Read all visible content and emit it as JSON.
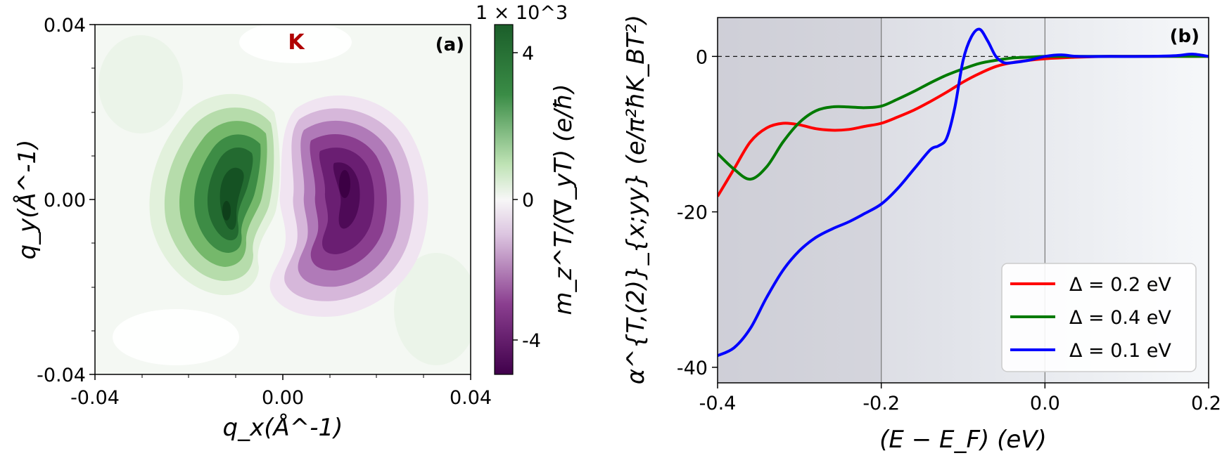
{
  "chart_data": [
    {
      "panel": "(a)",
      "type": "heatmap",
      "title": "",
      "annotation": "K",
      "xlabel": "q_x(Å^-1)",
      "ylabel": "q_y(Å^-1)",
      "xlim": [
        -0.04,
        0.04
      ],
      "ylim": [
        -0.04,
        0.04
      ],
      "xticks": [
        "-0.04",
        "0.00",
        "0.04"
      ],
      "yticks": [
        "0.04",
        "0.00",
        "-0.04"
      ],
      "colorbar": {
        "label": "m_z^T/(∇_yT)  (e/ħ)",
        "multiplier": "1 × 10^3",
        "range": [
          -5,
          5
        ],
        "ticks": [
          "4",
          "0",
          "-4"
        ],
        "cmap": "PRGn",
        "colors": {
          "max": "#1b5e2a",
          "mid": "#f7f7f7",
          "min": "#40004b"
        }
      },
      "lobes": [
        {
          "name": "positive",
          "center_x": -0.015,
          "center_y": 0.0,
          "peak": 5.0
        },
        {
          "name": "negative",
          "center_x": 0.012,
          "center_y": 0.002,
          "peak": -5.0
        }
      ]
    },
    {
      "panel": "(b)",
      "type": "line",
      "title": "",
      "xlabel": "(E − E_F)  (eV)",
      "ylabel": "α^{T,(2)}_{x;yy}  (e/π²ħK_BT²)",
      "xlim": [
        -0.4,
        0.2
      ],
      "ylim": [
        -42,
        5
      ],
      "xticks": [
        "-0.4",
        "-0.2",
        "0.0",
        "0.2"
      ],
      "yticks": [
        "0",
        "-20",
        "-40"
      ],
      "vlines": [
        -0.2,
        0.0
      ],
      "hline": 0,
      "legend_position": "lower-right",
      "series": [
        {
          "name": "Δ = 0.2 eV",
          "color": "#ff0000",
          "x": [
            -0.4,
            -0.38,
            -0.36,
            -0.34,
            -0.32,
            -0.3,
            -0.28,
            -0.26,
            -0.24,
            -0.22,
            -0.2,
            -0.18,
            -0.16,
            -0.14,
            -0.12,
            -0.1,
            -0.08,
            -0.06,
            -0.04,
            -0.02,
            0.0,
            0.04,
            0.08,
            0.12,
            0.16,
            0.2
          ],
          "y": [
            -18.0,
            -14.5,
            -11.0,
            -9.2,
            -8.6,
            -8.8,
            -9.3,
            -9.5,
            -9.4,
            -9.0,
            -8.6,
            -7.8,
            -6.9,
            -5.8,
            -4.6,
            -3.3,
            -2.2,
            -1.3,
            -0.8,
            -0.5,
            -0.3,
            -0.1,
            0.0,
            0.0,
            0.0,
            0.0
          ]
        },
        {
          "name": "Δ = 0.4 eV",
          "color": "#007a00",
          "x": [
            -0.4,
            -0.38,
            -0.36,
            -0.34,
            -0.32,
            -0.3,
            -0.28,
            -0.26,
            -0.24,
            -0.22,
            -0.2,
            -0.18,
            -0.16,
            -0.14,
            -0.12,
            -0.1,
            -0.08,
            -0.06,
            -0.04,
            -0.02,
            0.0,
            0.04,
            0.08,
            0.12,
            0.16,
            0.2
          ],
          "y": [
            -12.5,
            -14.5,
            -15.8,
            -14.2,
            -11.0,
            -8.5,
            -7.0,
            -6.5,
            -6.5,
            -6.6,
            -6.4,
            -5.5,
            -4.5,
            -3.4,
            -2.4,
            -1.6,
            -0.9,
            -0.5,
            -0.2,
            -0.1,
            0.0,
            0.0,
            0.0,
            0.0,
            0.0,
            0.0
          ]
        },
        {
          "name": "Δ = 0.1 eV",
          "color": "#0000ff",
          "x": [
            -0.4,
            -0.38,
            -0.36,
            -0.34,
            -0.32,
            -0.3,
            -0.28,
            -0.26,
            -0.24,
            -0.22,
            -0.2,
            -0.18,
            -0.16,
            -0.14,
            -0.13,
            -0.12,
            -0.11,
            -0.1,
            -0.09,
            -0.08,
            -0.07,
            -0.06,
            -0.05,
            -0.04,
            -0.02,
            0.0,
            0.02,
            0.04,
            0.08,
            0.12,
            0.16,
            0.18,
            0.2
          ],
          "y": [
            -38.5,
            -37.5,
            -35.0,
            -31.0,
            -27.5,
            -25.0,
            -23.3,
            -22.2,
            -21.3,
            -20.2,
            -19.0,
            -17.0,
            -14.5,
            -12.0,
            -11.5,
            -10.5,
            -6.5,
            -0.5,
            2.5,
            3.5,
            2.0,
            0.0,
            -0.8,
            -0.8,
            -0.5,
            0.0,
            0.2,
            0.0,
            0.0,
            0.0,
            0.1,
            0.3,
            0.0
          ]
        }
      ]
    }
  ]
}
